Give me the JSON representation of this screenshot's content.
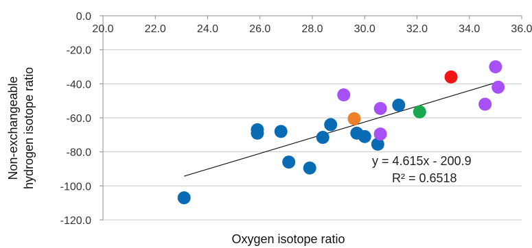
{
  "chart_data": {
    "type": "scatter",
    "title": "",
    "xlabel": "Oxygen isotope ratio",
    "ylabel": "Non-exchangeable hydrogen isotope ratio",
    "ylabel_lines": [
      "Non-exchangeable",
      "hydrogen isotope ratio"
    ],
    "xlim": [
      20,
      36
    ],
    "ylim": [
      -120,
      0
    ],
    "x_ticks": [
      "20.0",
      "22.0",
      "24.0",
      "26.0",
      "28.0",
      "30.0",
      "32.0",
      "34.0",
      "36.0"
    ],
    "y_ticks": [
      "0.0",
      "-20.0",
      "-40.0",
      "-60.0",
      "-80.0",
      "-100.0",
      "-120.0"
    ],
    "grid": "horizontal",
    "x_axis_position": "top",
    "colors": {
      "blue": "#0a6bb5",
      "purple": "#a650f5",
      "orange": "#ee7f2b",
      "green": "#19a84f",
      "red": "#f01414",
      "trendline": "#1a1a1a",
      "grid": "#c8c8c8"
    },
    "points": [
      {
        "x": 23.1,
        "y": -107,
        "color": "blue"
      },
      {
        "x": 25.9,
        "y": -67,
        "color": "blue"
      },
      {
        "x": 25.9,
        "y": -69,
        "color": "blue"
      },
      {
        "x": 26.8,
        "y": -68,
        "color": "blue"
      },
      {
        "x": 27.1,
        "y": -86,
        "color": "blue"
      },
      {
        "x": 27.9,
        "y": -89.5,
        "color": "blue"
      },
      {
        "x": 28.4,
        "y": -71.5,
        "color": "blue"
      },
      {
        "x": 28.7,
        "y": -64,
        "color": "blue"
      },
      {
        "x": 29.2,
        "y": -46.5,
        "color": "purple"
      },
      {
        "x": 29.6,
        "y": -60.5,
        "color": "orange"
      },
      {
        "x": 29.7,
        "y": -69,
        "color": "blue"
      },
      {
        "x": 30.0,
        "y": -71,
        "color": "blue"
      },
      {
        "x": 30.5,
        "y": -75.5,
        "color": "blue"
      },
      {
        "x": 30.6,
        "y": -54.5,
        "color": "purple"
      },
      {
        "x": 30.6,
        "y": -69.5,
        "color": "purple"
      },
      {
        "x": 31.3,
        "y": -52.5,
        "color": "blue"
      },
      {
        "x": 32.1,
        "y": -56.5,
        "color": "green"
      },
      {
        "x": 33.3,
        "y": -36,
        "color": "red"
      },
      {
        "x": 34.6,
        "y": -52,
        "color": "purple"
      },
      {
        "x": 35.0,
        "y": -30,
        "color": "purple"
      },
      {
        "x": 35.1,
        "y": -42,
        "color": "purple"
      }
    ],
    "trendline": {
      "slope": 4.615,
      "intercept": -200.9,
      "x_range": [
        23.1,
        35.1
      ],
      "equation": "y = 4.615x - 200.9",
      "r2_label": "R² = 0.6518"
    }
  }
}
